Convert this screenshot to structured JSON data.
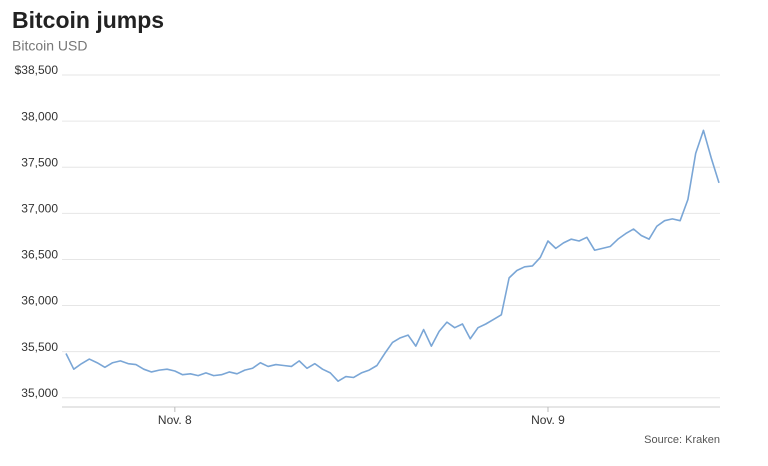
{
  "chart_data": {
    "type": "line",
    "title": "Bitcoin jumps",
    "subtitle": "Bitcoin USD",
    "source": "Source: Kraken",
    "categories": [
      null,
      null,
      null,
      null,
      null,
      null,
      null,
      null,
      null,
      null,
      null,
      null,
      null,
      null,
      "Nov. 8",
      null,
      null,
      null,
      null,
      null,
      null,
      null,
      null,
      null,
      null,
      null,
      null,
      null,
      null,
      null,
      null,
      null,
      null,
      null,
      null,
      null,
      null,
      null,
      null,
      null,
      null,
      null,
      null,
      null,
      null,
      null,
      null,
      null,
      null,
      null,
      null,
      null,
      null,
      null,
      null,
      null,
      null,
      null,
      null,
      null,
      null,
      null,
      "Nov. 9",
      null,
      null,
      null,
      null,
      null,
      null,
      null,
      null,
      null,
      null,
      null,
      null,
      null,
      null,
      null,
      null,
      null,
      null,
      null,
      null,
      null,
      null
    ],
    "values": [
      35480,
      35310,
      35370,
      35420,
      35380,
      35330,
      35380,
      35400,
      35370,
      35360,
      35310,
      35280,
      35300,
      35310,
      35290,
      35250,
      35260,
      35240,
      35270,
      35240,
      35250,
      35280,
      35260,
      35300,
      35320,
      35380,
      35340,
      35360,
      35350,
      35340,
      35400,
      35320,
      35370,
      35310,
      35270,
      35180,
      35230,
      35220,
      35270,
      35300,
      35350,
      35480,
      35600,
      35650,
      35680,
      35560,
      35740,
      35560,
      35720,
      35820,
      35760,
      35800,
      35640,
      35760,
      35800,
      35850,
      35900,
      36300,
      36380,
      36420,
      36430,
      36520,
      36700,
      36620,
      36680,
      36720,
      36700,
      36740,
      36600,
      36620,
      36640,
      36720,
      36780,
      36830,
      36760,
      36720,
      36860,
      36920,
      36940,
      36920,
      37150,
      37650,
      37900,
      37600,
      37330
    ],
    "color": "#7aa6d6",
    "ylim": [
      34900,
      38500
    ],
    "yticks": [
      {
        "value": 35000,
        "label": "35,000"
      },
      {
        "value": 35500,
        "label": "35,500"
      },
      {
        "value": 36000,
        "label": "36,000"
      },
      {
        "value": 36500,
        "label": "36,500"
      },
      {
        "value": 37000,
        "label": "37,000"
      },
      {
        "value": 37500,
        "label": "37,500"
      },
      {
        "value": 38000,
        "label": "38,000"
      },
      {
        "value": 38500,
        "label": "$38,500"
      }
    ],
    "grid": true
  }
}
